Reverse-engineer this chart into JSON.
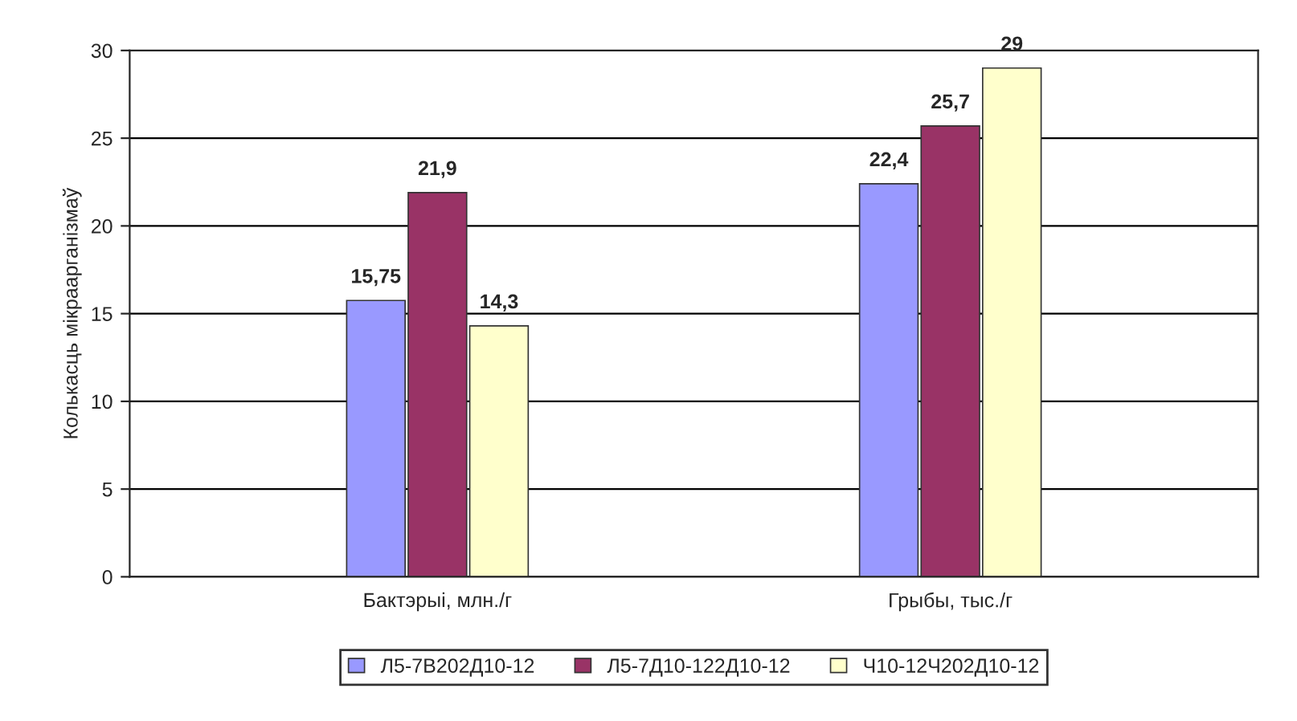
{
  "chart_data": {
    "type": "bar",
    "ylabel": "Колькасць мікраарганізмаў",
    "categories": [
      "Бактэрыі, млн./г",
      "Грыбы, тыс./г"
    ],
    "series": [
      {
        "name": "Л5-7В202Д10-12",
        "color": "#9999ff",
        "values": [
          15.75,
          22.4
        ],
        "value_labels": [
          "15,75",
          "22,4"
        ]
      },
      {
        "name": "Л5-7Д10-122Д10-12",
        "color": "#993366",
        "values": [
          21.9,
          25.7
        ],
        "value_labels": [
          "21,9",
          "25,7"
        ]
      },
      {
        "name": "Ч10-12Ч202Д10-12",
        "color": "#ffffcc",
        "values": [
          14.3,
          29
        ],
        "value_labels": [
          "14,3",
          "29"
        ]
      }
    ],
    "ylim": [
      0,
      30
    ],
    "yticks": [
      0,
      5,
      10,
      15,
      20,
      25,
      30
    ],
    "grid": "y",
    "legend": "bottom"
  }
}
